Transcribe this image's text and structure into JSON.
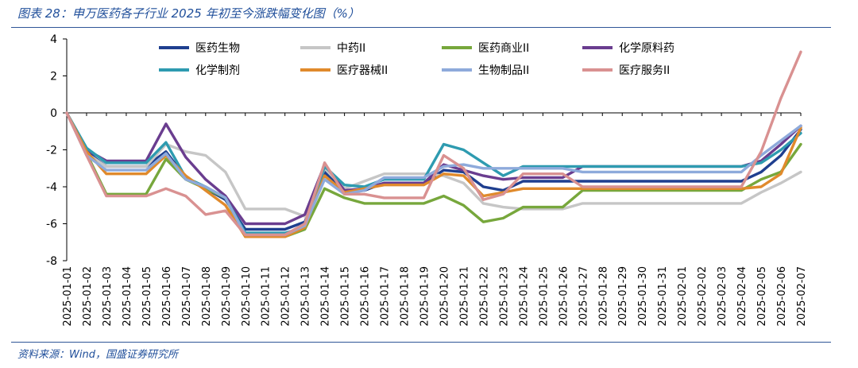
{
  "figure": {
    "title": "图表 28：申万医药各子行业 2025 年初至今涨跌幅变化图（%）",
    "source": "资料来源：Wind，国盛证券研究所"
  },
  "chart_data": {
    "type": "line",
    "xlabel": "",
    "ylabel": "",
    "ylim": [
      -8,
      4
    ],
    "yticks": [
      4,
      2,
      0,
      -2,
      -4,
      -6,
      -8
    ],
    "grid": false,
    "legend_position": "top",
    "x": [
      "2025-01-01",
      "2025-01-02",
      "2025-01-03",
      "2025-01-04",
      "2025-01-05",
      "2025-01-06",
      "2025-01-07",
      "2025-01-08",
      "2025-01-09",
      "2025-01-10",
      "2025-01-11",
      "2025-01-12",
      "2025-01-13",
      "2025-01-14",
      "2025-01-15",
      "2025-01-16",
      "2025-01-17",
      "2025-01-18",
      "2025-01-19",
      "2025-01-20",
      "2025-01-21",
      "2025-01-22",
      "2025-01-23",
      "2025-01-24",
      "2025-01-25",
      "2025-01-26",
      "2025-01-27",
      "2025-01-28",
      "2025-01-29",
      "2025-01-30",
      "2025-01-31",
      "2025-02-01",
      "2025-02-02",
      "2025-02-03",
      "2025-02-04",
      "2025-02-05",
      "2025-02-06",
      "2025-02-07"
    ],
    "series": [
      {
        "name": "医药生物",
        "color": "#1f3f8f",
        "values": [
          0,
          -2.1,
          -2.9,
          -2.9,
          -2.9,
          -2.1,
          -3.5,
          -4.1,
          -4.7,
          -6.3,
          -6.3,
          -6.3,
          -5.9,
          -3.2,
          -4.3,
          -4.2,
          -3.8,
          -3.8,
          -3.8,
          -3.1,
          -3.2,
          -4.0,
          -4.2,
          -3.7,
          -3.7,
          -3.7,
          -3.7,
          -3.7,
          -3.7,
          -3.7,
          -3.7,
          -3.7,
          -3.7,
          -3.7,
          -3.7,
          -3.2,
          -2.3,
          -0.9
        ]
      },
      {
        "name": "中药II",
        "color": "#c6c6c6",
        "values": [
          0,
          -2.2,
          -2.9,
          -2.9,
          -2.9,
          -1.7,
          -2.1,
          -2.3,
          -3.2,
          -5.2,
          -5.2,
          -5.2,
          -5.6,
          -3.0,
          -4.1,
          -3.7,
          -3.3,
          -3.3,
          -3.3,
          -3.4,
          -3.8,
          -4.9,
          -5.1,
          -5.2,
          -5.2,
          -5.2,
          -4.9,
          -4.9,
          -4.9,
          -4.9,
          -4.9,
          -4.9,
          -4.9,
          -4.9,
          -4.9,
          -4.3,
          -3.8,
          -3.2
        ]
      },
      {
        "name": "医药商业II",
        "color": "#77a73c",
        "values": [
          0,
          -2.2,
          -4.4,
          -4.4,
          -4.4,
          -2.5,
          -3.6,
          -4.1,
          -4.6,
          -6.7,
          -6.7,
          -6.7,
          -6.3,
          -4.1,
          -4.6,
          -4.9,
          -4.9,
          -4.9,
          -4.9,
          -4.5,
          -5.0,
          -5.9,
          -5.7,
          -5.1,
          -5.1,
          -5.1,
          -4.2,
          -4.2,
          -4.2,
          -4.2,
          -4.2,
          -4.2,
          -4.2,
          -4.2,
          -4.2,
          -3.6,
          -3.2,
          -1.7
        ]
      },
      {
        "name": "化学原料药",
        "color": "#6a3d8f",
        "values": [
          0,
          -2.0,
          -2.6,
          -2.6,
          -2.6,
          -0.6,
          -2.4,
          -3.6,
          -4.5,
          -6.0,
          -6.0,
          -6.0,
          -5.5,
          -2.8,
          -4.2,
          -4.1,
          -3.8,
          -3.8,
          -3.8,
          -2.8,
          -3.1,
          -3.4,
          -3.6,
          -3.5,
          -3.5,
          -3.5,
          -2.9,
          -2.9,
          -2.9,
          -2.9,
          -2.9,
          -2.9,
          -2.9,
          -2.9,
          -2.9,
          -2.6,
          -1.7,
          -0.7
        ]
      },
      {
        "name": "化学制剂",
        "color": "#2e9bb0",
        "values": [
          0,
          -1.9,
          -2.7,
          -2.7,
          -2.7,
          -1.6,
          -3.5,
          -4.0,
          -4.6,
          -6.5,
          -6.5,
          -6.5,
          -6.2,
          -2.9,
          -3.9,
          -4.0,
          -3.6,
          -3.6,
          -3.6,
          -1.7,
          -2.0,
          -2.7,
          -3.4,
          -2.9,
          -2.9,
          -2.9,
          -2.9,
          -2.9,
          -2.9,
          -2.9,
          -2.9,
          -2.9,
          -2.9,
          -2.9,
          -2.9,
          -2.7,
          -2.0,
          -1.1
        ]
      },
      {
        "name": "医疗器械II",
        "color": "#e08a2c",
        "values": [
          0,
          -2.1,
          -3.3,
          -3.3,
          -3.3,
          -2.3,
          -3.4,
          -4.2,
          -5.0,
          -6.7,
          -6.7,
          -6.7,
          -6.2,
          -3.4,
          -4.3,
          -4.1,
          -3.9,
          -3.9,
          -3.9,
          -3.3,
          -3.4,
          -4.5,
          -4.3,
          -4.1,
          -4.1,
          -4.1,
          -4.1,
          -4.1,
          -4.1,
          -4.1,
          -4.1,
          -4.1,
          -4.1,
          -4.1,
          -4.1,
          -4.0,
          -3.3,
          -0.8
        ]
      },
      {
        "name": "生物制品II",
        "color": "#8eaadb",
        "values": [
          0,
          -2.3,
          -3.1,
          -3.1,
          -3.1,
          -2.2,
          -3.6,
          -4.0,
          -4.6,
          -6.6,
          -6.6,
          -6.6,
          -6.1,
          -3.6,
          -4.4,
          -4.2,
          -3.5,
          -3.5,
          -3.5,
          -2.9,
          -2.8,
          -3.0,
          -3.0,
          -3.0,
          -3.0,
          -3.0,
          -3.2,
          -3.2,
          -3.2,
          -3.2,
          -3.2,
          -3.2,
          -3.2,
          -3.2,
          -3.2,
          -2.3,
          -1.5,
          -0.7
        ]
      },
      {
        "name": "医疗服务II",
        "color": "#d99191",
        "values": [
          0,
          -2.3,
          -4.5,
          -4.5,
          -4.5,
          -4.1,
          -4.5,
          -5.5,
          -5.3,
          -6.6,
          -6.6,
          -6.6,
          -6.0,
          -2.7,
          -4.4,
          -4.4,
          -4.6,
          -4.6,
          -4.6,
          -2.3,
          -3.0,
          -4.7,
          -4.4,
          -3.3,
          -3.3,
          -3.3,
          -4.0,
          -4.0,
          -4.0,
          -4.0,
          -4.0,
          -4.0,
          -4.0,
          -4.0,
          -4.0,
          -2.1,
          0.8,
          3.3
        ]
      }
    ]
  }
}
